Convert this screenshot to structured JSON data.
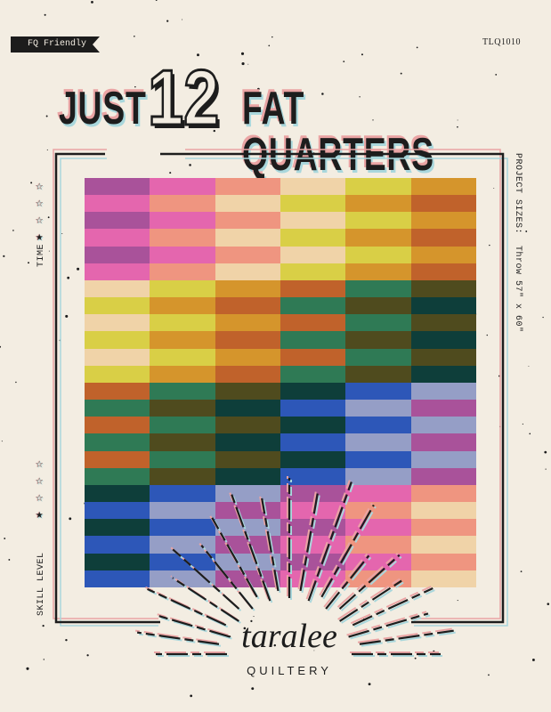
{
  "badge": "FQ Friendly",
  "pattern_code": "TLQ1010",
  "title": {
    "part1": "JUST",
    "number": "12",
    "part2": "FAT QUARTERS"
  },
  "time": {
    "label": "TIME",
    "rating": 1,
    "max": 4
  },
  "skill_level": {
    "label": "SKILL LEVEL",
    "rating": 1,
    "max": 4
  },
  "project_sizes": "PROJECT SIZES:  Throw 57\" x 60\"",
  "logo": {
    "script": "taralee",
    "word": "QUILTERY"
  },
  "colors": {
    "background": "#f3ede2",
    "palette": [
      "#a9529a",
      "#e466ae",
      "#ef9580",
      "#f0d3a8",
      "#d9cf46",
      "#d5952c",
      "#c0622b",
      "#2f7a55",
      "#4f4b1e",
      "#0e3e3a",
      "#2d57b8",
      "#959ec6"
    ],
    "shadow_pink": "#eaa4a4",
    "shadow_blue": "#a9d7dc"
  },
  "quilt": {
    "block_columns": 6,
    "block_rows": 4,
    "strips_per_block": 6
  }
}
